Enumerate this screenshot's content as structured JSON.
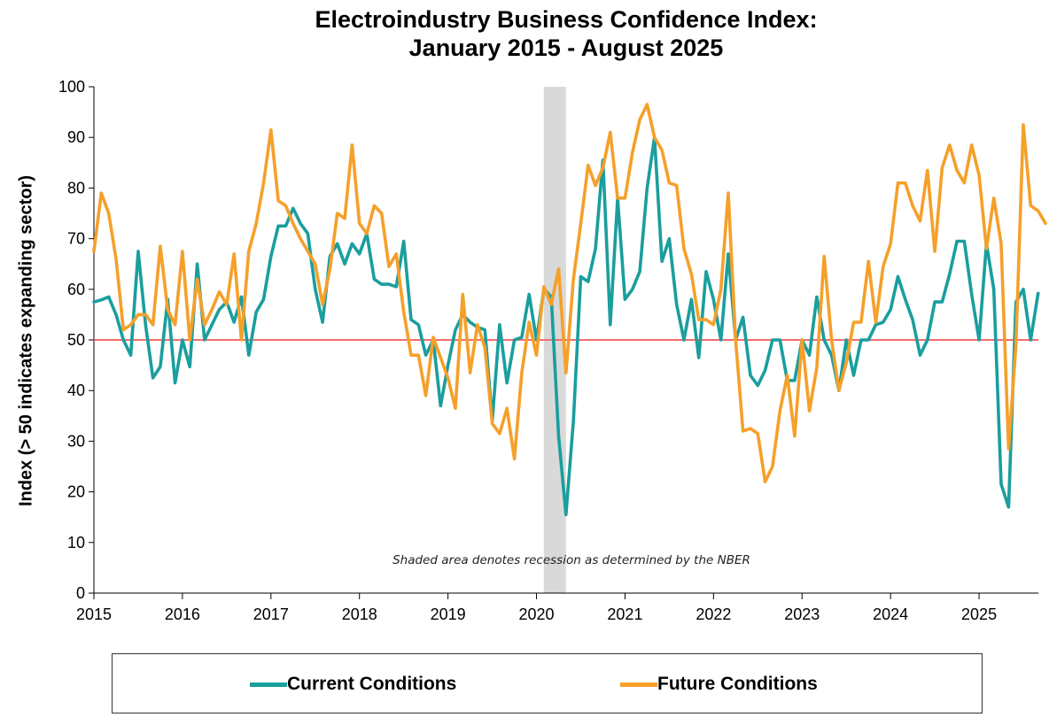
{
  "chart_data": {
    "type": "line",
    "title": "Electroindustry Business Confidence Index:",
    "subtitle": "January 2015 - August 2025",
    "xlabel": "",
    "ylabel": "Index (> 50 indicates expanding sector)",
    "ylim": [
      0,
      100
    ],
    "yticks": [
      "0",
      "10",
      "20",
      "30",
      "40",
      "50",
      "60",
      "70",
      "80",
      "90",
      "100"
    ],
    "xticks": [
      "2015",
      "2016",
      "2017",
      "2018",
      "2019",
      "2020",
      "2021",
      "2022",
      "2023",
      "2024",
      "2025"
    ],
    "xlim": [
      2015,
      2025.67
    ],
    "reference_line": {
      "value": 50,
      "color": "#f26d6d"
    },
    "recession": {
      "start": 2020.083,
      "end": 2020.333,
      "color": "#d9d9d9"
    },
    "annotation": "Shaded area denotes recession as determined by the NBER",
    "grid": false,
    "legend": "bottom",
    "start_year": 2015,
    "series": [
      {
        "name": "Current Conditions",
        "color": "#1a9e9e",
        "values": [
          57.5,
          57.9,
          58.5,
          55,
          50,
          47,
          67.5,
          53,
          42.5,
          44.7,
          58,
          41.5,
          50,
          44.7,
          65,
          50,
          53,
          56,
          57.5,
          53.5,
          58.5,
          47,
          55.5,
          58,
          66.5,
          72.5,
          72.5,
          76,
          73,
          71,
          60,
          53.5,
          66.5,
          69,
          65,
          69,
          67,
          71,
          62,
          61,
          61,
          60.5,
          69.5,
          54,
          53,
          47,
          50,
          37,
          45,
          52,
          55,
          53.5,
          52.5,
          52,
          34,
          53,
          41.5,
          50,
          50.5,
          59,
          50,
          60,
          58.5,
          31,
          15.5,
          34,
          62.5,
          61.5,
          68,
          85.5,
          53,
          78,
          58,
          60,
          63.5,
          80,
          90,
          65.5,
          70,
          57,
          50,
          58,
          46.5,
          63.5,
          58,
          50,
          67,
          50,
          54.5,
          43,
          41,
          44,
          50,
          50,
          42,
          42,
          50,
          47,
          58.5,
          50,
          47,
          40,
          50,
          43,
          50,
          50,
          53,
          53.5,
          56,
          62.5,
          58,
          54,
          47,
          50,
          57.5,
          57.5,
          63,
          69.5,
          69.5,
          59,
          50,
          69,
          60,
          21.5,
          17,
          57.5,
          60,
          50,
          59.2
        ]
      },
      {
        "name": "Future Conditions",
        "color": "#f5a02a",
        "values": [
          67.5,
          79,
          75,
          66,
          52,
          53,
          55,
          55,
          53,
          68.5,
          56,
          53,
          67.5,
          50,
          62,
          53,
          56,
          59.5,
          57,
          67,
          50,
          67.5,
          73,
          81,
          91.5,
          77.5,
          76.5,
          73,
          70,
          67.5,
          65,
          57,
          64,
          75,
          74,
          88.5,
          73,
          71,
          76.5,
          75,
          64.5,
          67,
          55.5,
          47,
          47,
          39,
          50.5,
          46.5,
          42.5,
          36.5,
          59,
          43.5,
          53,
          48.5,
          33.5,
          31.5,
          36.5,
          26.5,
          43.5,
          53.5,
          47,
          60.5,
          57,
          64,
          43.5,
          62,
          73,
          84.5,
          80.5,
          84,
          91,
          78,
          78,
          87,
          93.5,
          96.5,
          90,
          87.5,
          81,
          80.5,
          68,
          63,
          54,
          54,
          53,
          60,
          79,
          50,
          32,
          32.5,
          31.5,
          22,
          25,
          36,
          43,
          31,
          50,
          36,
          44.5,
          66.5,
          50,
          40,
          45.5,
          53.5,
          53.5,
          65.5,
          53.5,
          64.5,
          69,
          81,
          81,
          76.5,
          73.5,
          83.5,
          67.5,
          84,
          88.5,
          83.5,
          81,
          88.5,
          82.5,
          68,
          78,
          69,
          28.5,
          49,
          92.5,
          76.5,
          75.5,
          73
        ]
      }
    ]
  }
}
